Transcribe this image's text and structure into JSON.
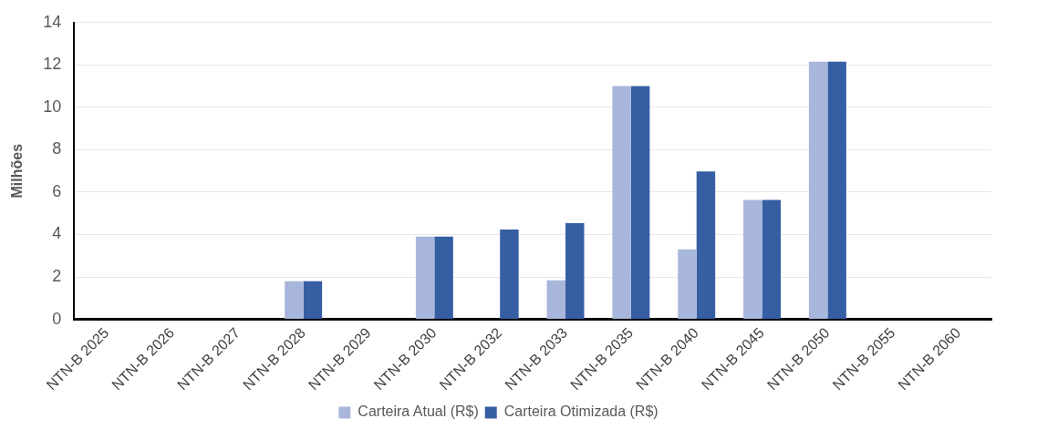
{
  "chart_data": {
    "type": "bar",
    "ylabel": "Milhões",
    "categories": [
      "NTN-B 2025",
      "NTN-B 2026",
      "NTN-B 2027",
      "NTN-B 2028",
      "NTN-B 2029",
      "NTN-B 2030",
      "NTN-B 2032",
      "NTN-B 2033",
      "NTN-B 2035",
      "NTN-B 2040",
      "NTN-B 2045",
      "NTN-B 2050",
      "NTN-B 2055",
      "NTN-B 2060"
    ],
    "series": [
      {
        "name": "Carteira Atual (R$)",
        "color": "#a9b6db",
        "values": [
          0,
          0,
          0,
          1.8,
          0,
          3.9,
          0,
          1.84,
          11.0,
          3.3,
          5.63,
          12.15,
          0,
          0
        ]
      },
      {
        "name": "Carteira Otimizada (R$)",
        "color": "#365ea3",
        "values": [
          0,
          0,
          0,
          1.8,
          0,
          3.9,
          4.24,
          4.54,
          11.0,
          6.98,
          5.63,
          12.15,
          0,
          0
        ]
      }
    ],
    "ylim": [
      0,
      14
    ],
    "yticks": [
      0,
      2,
      4,
      6,
      8,
      10,
      12,
      14
    ],
    "grid": "y",
    "legend": "bottom"
  }
}
